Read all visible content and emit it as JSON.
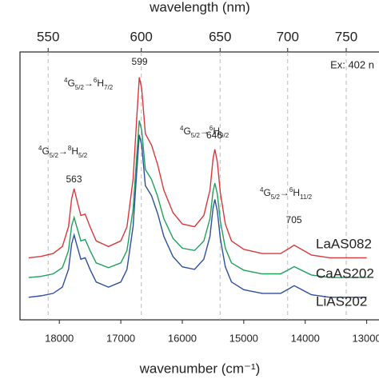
{
  "chart_data": {
    "type": "line",
    "xlabel": "wavenumber (cm⁻¹)",
    "x2label": "wavelength (nm)",
    "xlim": [
      18640,
      12800
    ],
    "xticks": [
      18000,
      17000,
      16000,
      15000,
      14000,
      13000
    ],
    "x2ticks": [
      550,
      600,
      650,
      700,
      750
    ],
    "x2_grid": true,
    "ylim": [
      0,
      95
    ],
    "x": [
      18500,
      18300,
      18100,
      17950,
      17850,
      17800,
      17760,
      17720,
      17650,
      17580,
      17500,
      17400,
      17200,
      17000,
      16900,
      16800,
      16740,
      16700,
      16660,
      16600,
      16500,
      16400,
      16300,
      16150,
      16000,
      15800,
      15650,
      15550,
      15500,
      15470,
      15430,
      15380,
      15300,
      15200,
      15000,
      14700,
      14400,
      14250,
      14180,
      14100,
      13900,
      13600,
      13300,
      13000
    ],
    "series": [
      {
        "name": "LaAS082",
        "color": "#d9383a",
        "values": [
          22,
          22.5,
          23.5,
          26,
          33,
          43,
          46.5,
          43,
          37,
          37.5,
          33,
          28,
          26,
          28,
          33,
          50,
          72,
          86,
          82,
          66,
          62,
          55,
          46,
          38,
          34,
          33,
          37,
          46,
          57,
          60.5,
          56,
          45,
          34,
          28,
          25,
          23.5,
          23.5,
          25.5,
          26.5,
          25.5,
          23,
          22,
          22,
          22
        ]
      },
      {
        "name": "CaAS202",
        "color": "#1fa05a",
        "values": [
          15,
          15.4,
          16.3,
          18.5,
          24.6,
          33.3,
          36.3,
          33.3,
          28,
          28.5,
          24.6,
          20.2,
          18.5,
          20.2,
          24.6,
          39.4,
          58.5,
          70.7,
          67.2,
          53.3,
          49.8,
          43.7,
          35.9,
          28.9,
          25.4,
          24.6,
          28,
          35.9,
          45.4,
          48.5,
          44.6,
          35,
          25.4,
          20.2,
          17.6,
          16.3,
          16.3,
          18,
          18.9,
          18,
          15.9,
          15,
          15,
          15
        ]
      },
      {
        "name": "LiAS202",
        "color": "#2d4f9e",
        "values": [
          8,
          8.5,
          9.4,
          11.6,
          17.9,
          26.9,
          30.1,
          26.9,
          21.5,
          22,
          17.9,
          13.4,
          11.6,
          13.4,
          17.9,
          33.2,
          53,
          65.6,
          62,
          47.6,
          44,
          37.7,
          29.6,
          22.4,
          18.8,
          17.9,
          21.5,
          29.6,
          39.5,
          42.7,
          38.6,
          28.7,
          18.8,
          13.4,
          10.7,
          9.4,
          9.4,
          11.2,
          12.1,
          11.2,
          8.9,
          8,
          8,
          8
        ]
      }
    ],
    "peak_labels": [
      563,
      599,
      646,
      705
    ],
    "note": "Ex: 402 n",
    "annotations": [
      {
        "parts": [
          {
            "text": "4",
            "style": "sup"
          },
          {
            "text": "G"
          },
          {
            "text": "5/2",
            "style": "sub"
          },
          {
            "text": "→"
          },
          {
            "text": "8",
            "style": "sup"
          },
          {
            "text": "H"
          },
          {
            "text": "5/2",
            "style": "sub"
          }
        ]
      },
      {
        "parts": [
          {
            "text": "4",
            "style": "sup"
          },
          {
            "text": "G"
          },
          {
            "text": "5/2",
            "style": "sub"
          },
          {
            "text": "→"
          },
          {
            "text": "6",
            "style": "sup"
          },
          {
            "text": "H"
          },
          {
            "text": "7/2",
            "style": "sub"
          }
        ]
      },
      {
        "parts": [
          {
            "text": "4",
            "style": "sup"
          },
          {
            "text": "G"
          },
          {
            "text": "5/2",
            "style": "sub"
          },
          {
            "text": "→"
          },
          {
            "text": "6",
            "style": "sup"
          },
          {
            "text": "H"
          },
          {
            "text": "9/2",
            "style": "sub"
          }
        ]
      },
      {
        "parts": [
          {
            "text": "4",
            "style": "sup"
          },
          {
            "text": "G"
          },
          {
            "text": "5/2",
            "style": "sub"
          },
          {
            "text": "→"
          },
          {
            "text": "6",
            "style": "sup"
          },
          {
            "text": "H"
          },
          {
            "text": "11/2",
            "style": "sub"
          }
        ]
      }
    ]
  }
}
